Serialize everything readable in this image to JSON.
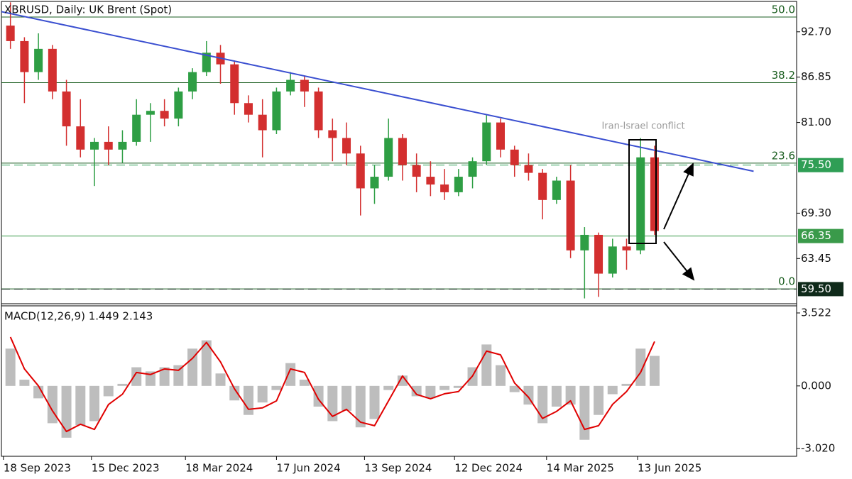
{
  "chart_data": [
    {
      "type": "candlestick",
      "title": "XBRUSD, Daily:  UK Brent (Spot)",
      "x": [
        "2023-09-18",
        "2023-10-02",
        "2023-10-16",
        "2023-10-30",
        "2023-11-13",
        "2023-11-27",
        "2023-12-11",
        "2023-12-25",
        "2024-01-08",
        "2024-01-22",
        "2024-02-05",
        "2024-02-19",
        "2024-03-04",
        "2024-03-18",
        "2024-04-01",
        "2024-04-15",
        "2024-04-29",
        "2024-05-13",
        "2024-05-27",
        "2024-06-10",
        "2024-06-24",
        "2024-07-08",
        "2024-07-22",
        "2024-08-05",
        "2024-08-19",
        "2024-09-02",
        "2024-09-16",
        "2024-09-30",
        "2024-10-14",
        "2024-10-28",
        "2024-11-11",
        "2024-11-25",
        "2024-12-09",
        "2024-12-23",
        "2025-01-06",
        "2025-01-20",
        "2025-02-03",
        "2025-02-17",
        "2025-03-03",
        "2025-03-17",
        "2025-03-31",
        "2025-04-14",
        "2025-04-28",
        "2025-05-12",
        "2025-05-26",
        "2025-06-09",
        "2025-06-23"
      ],
      "open": [
        93.5,
        91.5,
        87.5,
        90.5,
        85,
        80.5,
        77.5,
        78.5,
        77.5,
        78.5,
        82,
        82.5,
        81.5,
        85,
        87.5,
        90,
        88.5,
        83.5,
        82,
        80,
        85,
        86.5,
        85,
        80,
        79,
        77,
        72.5,
        74,
        79,
        75.5,
        74,
        73,
        72,
        74,
        76,
        81,
        77.5,
        75.5,
        74.5,
        71,
        73.5,
        64.5,
        66.5,
        61.5,
        65,
        64.5,
        76.5
      ],
      "high": [
        96.5,
        92,
        92.5,
        91,
        86.5,
        84,
        79,
        80.5,
        80,
        84,
        83.5,
        84,
        85.5,
        88,
        91.5,
        91,
        89,
        84.5,
        84,
        85.5,
        87.5,
        87,
        85.5,
        81.5,
        81,
        78,
        75.5,
        81.5,
        79.5,
        77,
        76,
        75,
        75,
        76.5,
        82,
        81.5,
        78,
        77,
        75,
        74,
        75.5,
        67.5,
        66.8,
        66,
        66,
        79,
        78
      ],
      "low": [
        90.5,
        83.5,
        86.5,
        84,
        78,
        76.5,
        72.8,
        75.5,
        75.8,
        78,
        78.5,
        80.5,
        80.5,
        84,
        87,
        86,
        82,
        81,
        76.5,
        79.5,
        84.5,
        83,
        79,
        76,
        75.5,
        69,
        70.5,
        73.5,
        73.5,
        72,
        71.5,
        71,
        71.5,
        72.5,
        75.5,
        76.5,
        74,
        73.5,
        68.5,
        70.5,
        63.5,
        58.3,
        58.5,
        61,
        62,
        64,
        66.5
      ],
      "close": [
        91.5,
        87.5,
        90.5,
        85,
        80.5,
        77.5,
        78.5,
        77.5,
        78.5,
        82,
        82.5,
        81.5,
        85,
        87.5,
        90,
        88.5,
        83.5,
        82,
        80,
        85,
        86.5,
        85,
        80,
        79,
        77,
        72.5,
        74,
        79,
        75.5,
        74,
        73,
        72,
        74,
        76,
        81,
        77.5,
        75.5,
        74.5,
        71,
        73.5,
        64.5,
        66.5,
        61.5,
        65,
        64.5,
        76.5,
        67
      ],
      "up_color": "#2e9e44",
      "down_color": "#d32f2f",
      "xlim": [
        "2023-09-16",
        "2025-11-19"
      ],
      "xticks": [
        {
          "value": "2023-09-18",
          "label": "18 Sep 2023"
        },
        {
          "value": "2023-12-15",
          "label": "15 Dec 2023"
        },
        {
          "value": "2024-03-18",
          "label": "18 Mar 2024"
        },
        {
          "value": "2024-06-17",
          "label": "17 Jun 2024"
        },
        {
          "value": "2024-09-13",
          "label": "13 Sep 2024"
        },
        {
          "value": "2024-12-12",
          "label": "12 Dec 2024"
        },
        {
          "value": "2025-03-14",
          "label": "14 Mar 2025"
        },
        {
          "value": "2025-06-13",
          "label": "13 Jun 2025"
        }
      ],
      "ylim": [
        57.89,
        96.62
      ],
      "yticks": [
        {
          "value": 92.7,
          "label": "92.70"
        },
        {
          "value": 86.85,
          "label": "86.85"
        },
        {
          "value": 81,
          "label": "81.00"
        },
        {
          "value": 69.3,
          "label": "69.30"
        },
        {
          "value": 63.45,
          "label": "63.45"
        }
      ],
      "fib_levels": [
        {
          "name": "50.0",
          "value": 94.61
        },
        {
          "name": "38.2",
          "value": 86.14
        },
        {
          "name": "23.6",
          "value": 75.75
        },
        {
          "name": "0.0",
          "value": 59.53
        }
      ],
      "fib_color": "#1b5e20",
      "price_levels": [
        {
          "value": 75.5,
          "label": "75.50",
          "color": "#2f9e55",
          "dashed": true
        },
        {
          "value": 66.35,
          "label": "66.35",
          "color": "#3a9a4a",
          "dashed": false
        },
        {
          "value": 59.5,
          "label": "59.50",
          "color": "#0f2a1a",
          "dashed": true
        }
      ],
      "trendline": {
        "x": [
          "2023-09-16",
          "2025-10-07"
        ],
        "y": [
          95.3,
          74.7
        ],
        "color": "#3a4fd0"
      },
      "annotation": "Iran-Israel conflict"
    },
    {
      "type": "macd",
      "label": "MACD(12,26,9) 1.449 2.143",
      "x": [
        "2023-09-18",
        "2023-10-02",
        "2023-10-16",
        "2023-10-30",
        "2023-11-13",
        "2023-11-27",
        "2023-12-11",
        "2023-12-25",
        "2024-01-08",
        "2024-01-22",
        "2024-02-05",
        "2024-02-19",
        "2024-03-04",
        "2024-03-18",
        "2024-04-01",
        "2024-04-15",
        "2024-04-29",
        "2024-05-13",
        "2024-05-27",
        "2024-06-10",
        "2024-06-24",
        "2024-07-08",
        "2024-07-22",
        "2024-08-05",
        "2024-08-19",
        "2024-09-02",
        "2024-09-16",
        "2024-09-30",
        "2024-10-14",
        "2024-10-28",
        "2024-11-11",
        "2024-11-25",
        "2024-12-09",
        "2024-12-23",
        "2025-01-06",
        "2025-01-20",
        "2025-02-03",
        "2025-02-17",
        "2025-03-03",
        "2025-03-17",
        "2025-03-31",
        "2025-04-14",
        "2025-04-28",
        "2025-05-12",
        "2025-05-26",
        "2025-06-09",
        "2025-06-23"
      ],
      "histogram": {
        "color": "#bdbdbd",
        "values": [
          1.8,
          0.3,
          -0.6,
          -1.8,
          -2.5,
          -1.9,
          -1.7,
          -0.5,
          0.1,
          0.9,
          0.7,
          0.9,
          1.0,
          1.8,
          2.2,
          0.6,
          -0.7,
          -1.4,
          -0.8,
          -0.2,
          1.1,
          0.3,
          -1.0,
          -1.7,
          -1.2,
          -2.0,
          -1.6,
          -0.2,
          0.5,
          -0.5,
          -0.6,
          -0.2,
          -0.1,
          0.9,
          2.0,
          1.0,
          -0.3,
          -0.9,
          -1.8,
          -1.0,
          -0.9,
          -2.6,
          -1.4,
          -0.4,
          0.1,
          1.8,
          1.449
        ]
      },
      "signal": {
        "color": "#e00000",
        "values": [
          2.36,
          0.82,
          0,
          -1.2,
          -2.2,
          -1.85,
          -2.1,
          -0.9,
          -0.4,
          0.65,
          0.55,
          0.82,
          0.75,
          1.33,
          2.1,
          1.16,
          -0.14,
          -1.13,
          -1.06,
          -0.72,
          0.82,
          0.65,
          -0.65,
          -1.47,
          -1.13,
          -1.75,
          -1.92,
          -0.72,
          0.48,
          -0.41,
          -0.62,
          -0.38,
          -0.27,
          0.48,
          1.68,
          1.5,
          0.14,
          -0.55,
          -1.57,
          -1.23,
          -0.72,
          -2.1,
          -1.92,
          -0.89,
          -0.27,
          0.65,
          2.143
        ]
      },
      "ylim": [
        -3.397,
        3.864
      ],
      "yticks": [
        3.522,
        {
          "value": 0,
          "label": "0.000"
        },
        {
          "value": -3.02,
          "label": "-3.020"
        }
      ]
    }
  ]
}
